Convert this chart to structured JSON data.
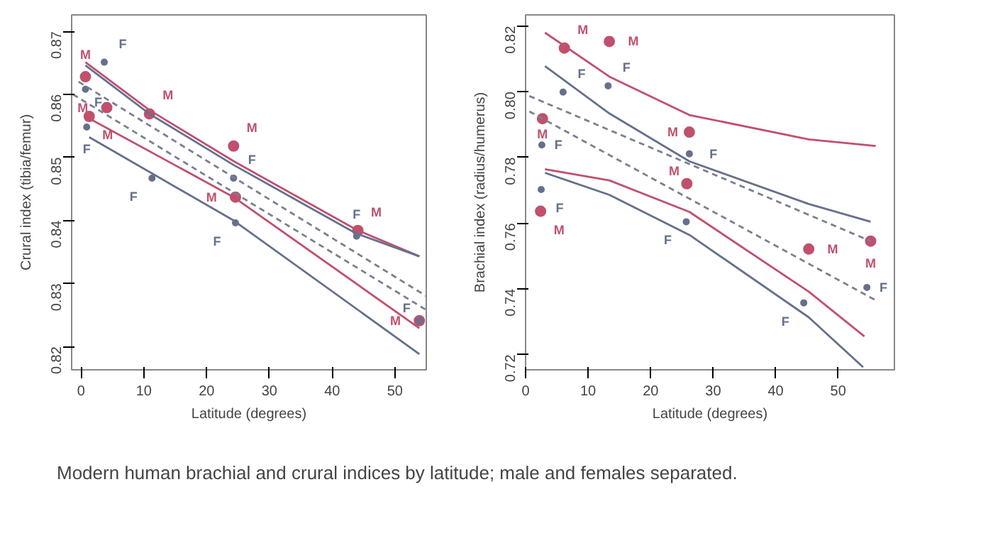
{
  "chart_data": [
    {
      "type": "line",
      "xlabel": "Latitude (degrees)",
      "ylabel": "Crural index (tibia/femur)",
      "xlim": [
        -1.5,
        55
      ],
      "ylim": [
        0.8163,
        0.8726
      ],
      "xticks": [
        0,
        10,
        20,
        30,
        40,
        50
      ],
      "yticks": [
        0.82,
        0.83,
        0.84,
        0.85,
        0.86,
        0.87
      ],
      "grid": false,
      "series": [
        {
          "type": "scatter",
          "marker": "circle",
          "name": "M",
          "color": "#c0506e",
          "x": [
            0.7,
            1.3,
            4.1,
            10.9,
            24.3,
            24.6,
            44.1,
            53.9
          ],
          "values": [
            0.8628,
            0.8565,
            0.8579,
            0.8569,
            0.8518,
            0.8437,
            0.8384,
            0.8241
          ]
        },
        {
          "type": "scatter",
          "marker": "circle",
          "name": "F",
          "color": "#66708c",
          "x": [
            3.7,
            0.7,
            0.9,
            11.3,
            24.3,
            24.6,
            43.9,
            53.9
          ],
          "values": [
            0.8651,
            0.8608,
            0.8548,
            0.8467,
            0.8467,
            0.8396,
            0.8375,
            0.8241
          ]
        },
        {
          "line_style": "dashed",
          "color": "#7a8090",
          "x": [
            -0.4,
            55
          ],
          "values": [
            0.862,
            0.828
          ]
        },
        {
          "line_style": "dashed",
          "color": "#7a8090",
          "x": [
            -1.3,
            55
          ],
          "values": [
            0.86,
            0.8258
          ]
        },
        {
          "line_style": "solid",
          "color": "#c0506e",
          "x": [
            0.7,
            10.9,
            24.3,
            43.9,
            53.9
          ],
          "values": [
            0.8651,
            0.8575,
            0.8494,
            0.8385,
            0.8343
          ]
        },
        {
          "line_style": "solid",
          "color": "#66708c",
          "x": [
            0.7,
            10.9,
            24.3,
            43.9,
            53.9
          ],
          "values": [
            0.8646,
            0.8569,
            0.8488,
            0.8379,
            0.8343
          ]
        },
        {
          "line_style": "solid",
          "color": "#c0506e",
          "x": [
            0.7,
            24.3,
            53.9
          ],
          "values": [
            0.8565,
            0.8437,
            0.8229
          ]
        },
        {
          "line_style": "solid",
          "color": "#66708c",
          "x": [
            1.3,
            24.3,
            53.9
          ],
          "values": [
            0.8532,
            0.84,
            0.8188
          ]
        }
      ]
    },
    {
      "type": "line",
      "xlabel": "Latitude (degrees)",
      "ylabel": "Brachial index (radius/humerus)",
      "xlim": [
        0,
        59
      ],
      "ylim": [
        0.7153,
        0.8234
      ],
      "xticks": [
        0,
        10,
        20,
        30,
        40,
        50
      ],
      "yticks": [
        0.72,
        0.74,
        0.76,
        0.78,
        {
          "value": 0.8,
          "label": "0.80"
        },
        0.82
      ],
      "grid": false,
      "annotations": [
        "Modern human brachial and crural indices by latitude; male and females separated."
      ],
      "series": [
        {
          "type": "scatter",
          "marker": "circle",
          "name": "M",
          "color": "#c0506e",
          "x": [
            6.2,
            13.4,
            2.7,
            26.2,
            25.8,
            2.4,
            45.3,
            55.2
          ],
          "values": [
            0.8133,
            0.8153,
            0.7918,
            0.7877,
            0.772,
            0.7636,
            0.7521,
            0.7545
          ]
        },
        {
          "type": "scatter",
          "marker": "circle",
          "name": "F",
          "color": "#66708c",
          "x": [
            6.0,
            13.2,
            2.6,
            26.2,
            2.5,
            25.7,
            44.5,
            54.6
          ],
          "values": [
            0.7999,
            0.8018,
            0.7838,
            0.7811,
            0.7702,
            0.7604,
            0.7357,
            0.7404
          ]
        },
        {
          "line_style": "dashed",
          "color": "#7a8090",
          "x": [
            0.6,
            55.2
          ],
          "values": [
            0.7987,
            0.7545
          ]
        },
        {
          "line_style": "dashed",
          "color": "#7a8090",
          "x": [
            0.6,
            56.0
          ],
          "values": [
            0.794,
            0.7365
          ]
        },
        {
          "line_style": "solid",
          "color": "#c0506e",
          "x": [
            3.1,
            13.4,
            26.2,
            45.3,
            56.0
          ],
          "values": [
            0.818,
            0.8046,
            0.7929,
            0.7855,
            0.7835
          ]
        },
        {
          "line_style": "solid",
          "color": "#66708c",
          "x": [
            3.1,
            13.4,
            26.2,
            45.3,
            55.2
          ],
          "values": [
            0.8078,
            0.7934,
            0.7788,
            0.7658,
            0.7604
          ]
        },
        {
          "line_style": "solid",
          "color": "#c0506e",
          "x": [
            3.1,
            13.4,
            26.2,
            45.3,
            54.2
          ],
          "values": [
            0.7764,
            0.773,
            0.7634,
            0.7391,
            0.7255
          ]
        },
        {
          "line_style": "solid",
          "color": "#66708c",
          "x": [
            3.1,
            13.4,
            26.2,
            45.3,
            54.0
          ],
          "values": [
            0.7753,
            0.7686,
            0.7564,
            0.7313,
            0.7161
          ]
        }
      ]
    }
  ]
}
